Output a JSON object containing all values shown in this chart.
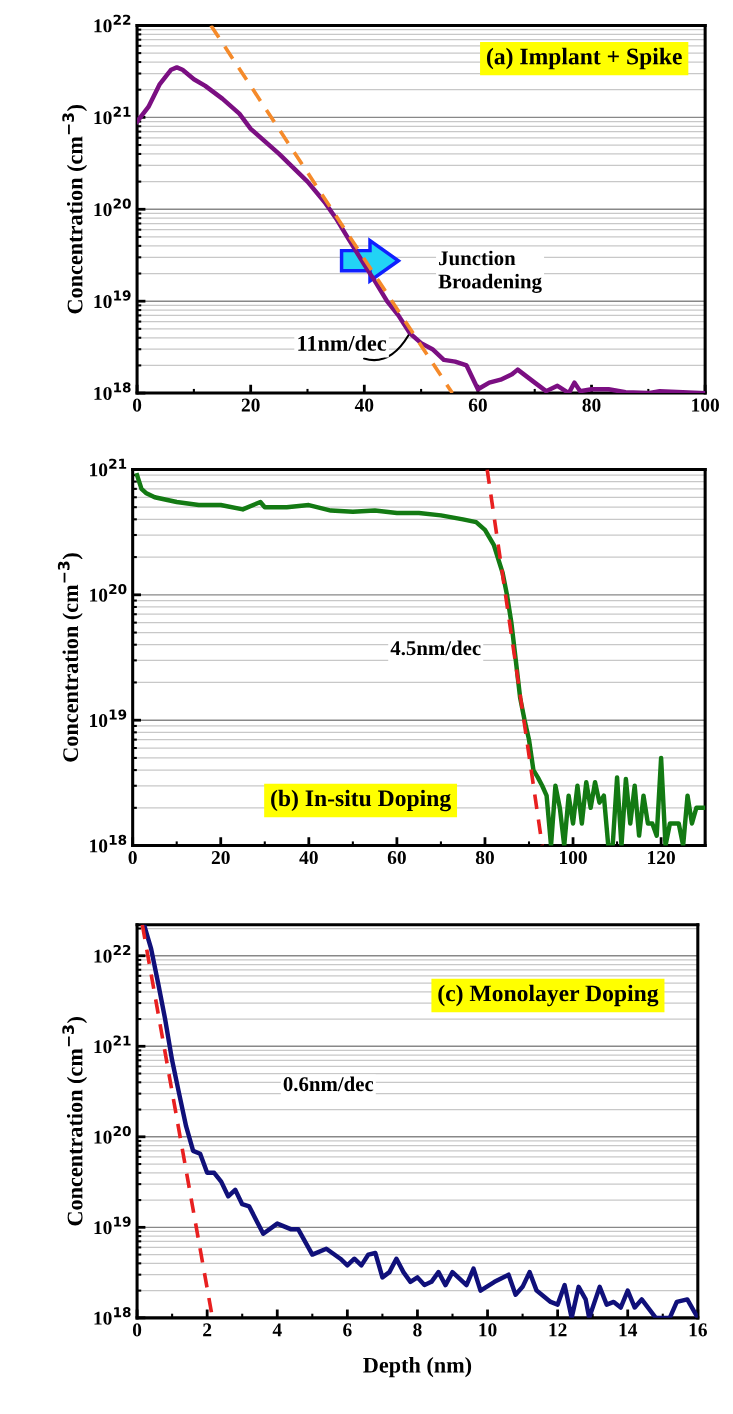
{
  "chart_data": [
    {
      "type": "line",
      "title": "(a) Implant + Spike",
      "ylabel": "Concentration (cm$^{−3}$)",
      "log": "y",
      "grid": "y",
      "tick_labels": "xy",
      "xlim": [
        0,
        100
      ],
      "xticks": [
        0,
        20,
        40,
        60,
        80,
        100
      ],
      "ylim": [
        1e+18,
        1e+22
      ],
      "yticks": [
        {
          "value": 1e+18,
          "label": "10$^{18}$"
        },
        {
          "value": 1e+19,
          "label": "10$^{19}$"
        },
        {
          "value": 1e+20,
          "label": "10$^{20}$"
        },
        {
          "value": 1e+21,
          "label": "10$^{21}$"
        },
        {
          "value": 1e+22,
          "label": "10$^{22}$"
        }
      ],
      "annotations": [
        "Junction\nBroadening",
        {
          "text": "11nm/dec",
          "x": 48,
          "y": 4.5e+18
        }
      ],
      "series": [
        {
          "color": "#7b0f82",
          "line_style": "solid",
          "x": [
            0,
            2,
            4,
            6,
            7,
            8,
            10,
            12,
            15,
            18,
            20,
            25,
            30,
            33,
            35,
            37,
            40,
            42,
            44,
            46,
            48,
            50,
            52,
            54,
            56,
            58,
            60,
            62,
            64,
            66,
            67,
            70,
            72,
            74,
            76,
            77,
            78,
            80,
            83,
            86,
            90,
            92,
            100
          ],
          "values": [
            9e+20,
            1.3e+21,
            2.3e+21,
            3.3e+21,
            3.5e+21,
            3.3e+21,
            2.6e+21,
            2.2e+21,
            1.6e+21,
            1.1e+21,
            7.5e+20,
            4e+20,
            2e+20,
            1.2e+20,
            8e+19,
            5e+19,
            2.5e+19,
            1.6e+19,
            1e+19,
            7e+18,
            4.5e+18,
            3.5e+18,
            3e+18,
            2.3e+18,
            2.2e+18,
            2e+18,
            1.1e+18,
            1.3e+18,
            1.4e+18,
            1.6e+18,
            1.8e+18,
            1.3e+18,
            1.05e+18,
            1.2e+18,
            1e+18,
            1.3e+18,
            1.05e+18,
            1.1e+18,
            1.1e+18,
            1.02e+18,
            1e+18,
            1.05e+18,
            1e+18
          ]
        },
        {
          "color": "#f58a2a",
          "line_style": "dashed",
          "x": [
            13,
            55.5
          ],
          "values": [
            1e+22,
            1e+18
          ]
        }
      ]
    },
    {
      "type": "line",
      "title": "(b) In-situ Doping",
      "ylabel": "Concentration (cm$^{−3}$)",
      "log": "y",
      "grid": "y",
      "tick_labels": "xy",
      "xlim": [
        0,
        130
      ],
      "xticks": [
        0,
        20,
        40,
        60,
        80,
        100,
        120
      ],
      "ylim": [
        1e+18,
        1e+21
      ],
      "yticks": [
        {
          "value": 1e+18,
          "label": "10$^{18}$"
        },
        {
          "value": 1e+19,
          "label": "10$^{19}$"
        },
        {
          "value": 1e+20,
          "label": "10$^{20}$"
        },
        {
          "value": 1e+21,
          "label": "10$^{21}$"
        }
      ],
      "annotations": [
        "4.5nm/dec"
      ],
      "series": [
        {
          "color": "#137a13",
          "line_style": "solid",
          "x": [
            1,
            2,
            3,
            5,
            10,
            15,
            20,
            25,
            29,
            30,
            35,
            40,
            45,
            50,
            55,
            60,
            65,
            70,
            75,
            78,
            80,
            82,
            84,
            85,
            86,
            87,
            88,
            89,
            90,
            91,
            92,
            93,
            94,
            95,
            96,
            97,
            98,
            99,
            100,
            101,
            102,
            103,
            104,
            105,
            106,
            107,
            108,
            109,
            110,
            111,
            112,
            113,
            114,
            115,
            116,
            117,
            118,
            119,
            120,
            121,
            122,
            124,
            125,
            126,
            127,
            128,
            130
          ],
          "values": [
            9e+20,
            7e+20,
            6.5e+20,
            6e+20,
            5.5e+20,
            5.2e+20,
            5.2e+20,
            4.8e+20,
            5.5e+20,
            5e+20,
            5e+20,
            5.2e+20,
            4.7e+20,
            4.6e+20,
            4.7e+20,
            4.5e+20,
            4.5e+20,
            4.3e+20,
            4e+20,
            3.8e+20,
            3.3e+20,
            2.5e+20,
            1.5e+20,
            1e+20,
            6e+19,
            3e+19,
            1.5e+19,
            1e+19,
            7e+18,
            4e+18,
            3.5e+18,
            3e+18,
            2.5e+18,
            1e+18,
            3e+18,
            2e+18,
            1e+18,
            2.5e+18,
            1.5e+18,
            3e+18,
            1.5e+18,
            3.2e+18,
            2e+18,
            3.2e+18,
            2.2e+18,
            2.5e+18,
            1e+18,
            1e+18,
            3.5e+18,
            1e+18,
            3.4e+18,
            1.5e+18,
            3e+18,
            1.2e+18,
            2.5e+18,
            1.5e+18,
            1.5e+18,
            1.2e+18,
            5e+18,
            1e+18,
            1.5e+18,
            1.5e+18,
            1e+18,
            2.5e+18,
            1.5e+18,
            2e+18,
            2e+18
          ]
        },
        {
          "color": "#e82020",
          "line_style": "dashed",
          "x": [
            80.5,
            93
          ],
          "values": [
            1e+21,
            1e+18
          ]
        }
      ]
    },
    {
      "type": "line",
      "title": "(c) Monolayer Doping",
      "xlabel": "Depth (nm)",
      "ylabel": "Concentration (cm$^{−3}$)",
      "log": "y",
      "grid": "y",
      "tick_labels": "xy",
      "xlim": [
        0,
        16
      ],
      "xticks": [
        0,
        2,
        4,
        6,
        8,
        10,
        12,
        14,
        16
      ],
      "ylim": [
        1e+18,
        2.2e+22
      ],
      "yticks": [
        {
          "value": 1e+18,
          "label": "10$^{18}$"
        },
        {
          "value": 1e+19,
          "label": "10$^{19}$"
        },
        {
          "value": 1e+20,
          "label": "10$^{20}$"
        },
        {
          "value": 1e+21,
          "label": "10$^{21}$"
        },
        {
          "value": 1e+22,
          "label": "10$^{22}$"
        }
      ],
      "annotations": [
        "0.6nm/dec"
      ],
      "series": [
        {
          "color": "#10107a",
          "line_style": "solid",
          "x": [
            0.2,
            0.4,
            0.6,
            0.8,
            1.0,
            1.2,
            1.4,
            1.6,
            1.8,
            2.0,
            2.2,
            2.4,
            2.6,
            2.8,
            3.0,
            3.2,
            3.4,
            3.6,
            4.0,
            4.4,
            4.6,
            5.0,
            5.4,
            5.8,
            6.0,
            6.2,
            6.4,
            6.6,
            6.8,
            7.0,
            7.2,
            7.4,
            7.6,
            7.8,
            8.0,
            8.2,
            8.4,
            8.6,
            8.8,
            9.0,
            9.4,
            9.6,
            9.8,
            10.2,
            10.6,
            10.8,
            11.0,
            11.2,
            11.4,
            11.8,
            12.0,
            12.2,
            12.4,
            12.6,
            12.8,
            12.9,
            13.2,
            13.4,
            13.6,
            13.8,
            14.0,
            14.2,
            14.4,
            14.8,
            15.2,
            15.4,
            15.7,
            16
          ],
          "values": [
            2.2e+22,
            1.2e+22,
            5e+21,
            2e+21,
            7e+20,
            3e+20,
            1.3e+20,
            7e+19,
            6.5e+19,
            4e+19,
            4e+19,
            3.2e+19,
            2.2e+19,
            2.6e+19,
            1.8e+19,
            1.7e+19,
            1.2e+19,
            8.5e+18,
            1.1e+19,
            9.5e+18,
            9.5e+18,
            5e+18,
            5.8e+18,
            4.5e+18,
            3.8e+18,
            4.5e+18,
            3.8e+18,
            5e+18,
            5.2e+18,
            2.8e+18,
            3.2e+18,
            4.5e+18,
            3.2e+18,
            2.5e+18,
            2.8e+18,
            2.3e+18,
            2.5e+18,
            3.2e+18,
            2.3e+18,
            3.2e+18,
            2.3e+18,
            3.5e+18,
            2e+18,
            2.5e+18,
            3e+18,
            1.8e+18,
            2.2e+18,
            3.2e+18,
            2e+18,
            1.5e+18,
            1.4e+18,
            2.3e+18,
            1e+18,
            2.2e+18,
            1.6e+18,
            1e+18,
            2.2e+18,
            1.4e+18,
            1.5e+18,
            1.3e+18,
            2e+18,
            1.3e+18,
            1.6e+18,
            1e+18,
            1e+18,
            1.5e+18,
            1.6e+18,
            1e+18
          ]
        },
        {
          "color": "#e82020",
          "line_style": "dashed",
          "x": [
            0.15,
            2.15
          ],
          "values": [
            2.2e+22,
            1e+18
          ]
        }
      ]
    }
  ]
}
